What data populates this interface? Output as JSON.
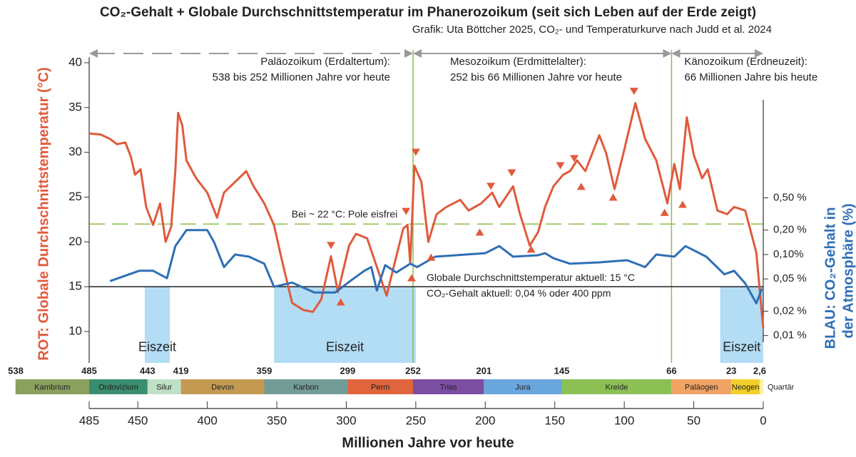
{
  "chart_data": {
    "type": "line",
    "title": "CO₂-Gehalt + Globale Durchschnittstemperatur im Phanerozoikum (seit sich Leben auf der Erde  zeigt)",
    "subtitle": "Grafik: Uta Böttcher 2025, CO₂- und Temperaturkurve nach Judd et al. 2024",
    "x_label": "Millionen Jahre vor heute",
    "y_label": "ROT: Globale Durchschnittstemperatur (°C)",
    "y2_label": [
      "BLAU: CO₂-Gehalt in",
      "der Atmosphäre (%)"
    ],
    "xlim": [
      485,
      0
    ],
    "xticks": [
      485,
      450,
      400,
      350,
      300,
      250,
      200,
      150,
      100,
      50,
      0
    ],
    "ylim": [
      6.5,
      41
    ],
    "yticks": [
      10,
      15,
      20,
      25,
      30,
      35,
      40
    ],
    "y2lim": [
      0.0046,
      30
    ],
    "y2scale": "log",
    "y2ticks": [
      {
        "value": 0.01,
        "label": "0,01 %"
      },
      {
        "value": 0.02,
        "label": "0,02 %"
      },
      {
        "value": 0.05,
        "label": "0,05 %"
      },
      {
        "value": 0.1,
        "label": "0,10%"
      },
      {
        "value": 0.2,
        "label": "0,20 %"
      },
      {
        "value": 0.5,
        "label": "0,50 %"
      }
    ],
    "series": [
      {
        "color": "#e05a3c",
        "x": [
          485,
          477,
          470,
          465,
          459,
          455,
          452,
          448,
          444,
          439,
          434,
          430,
          426,
          423,
          421,
          418,
          415,
          408,
          400,
          393,
          388,
          380,
          372,
          367,
          359,
          352,
          347,
          339,
          331,
          324,
          318,
          311,
          306,
          298,
          293,
          285,
          278,
          271,
          264,
          259,
          256,
          254,
          251,
          246,
          241,
          235,
          228,
          218,
          212,
          203,
          195,
          190,
          180,
          175,
          168,
          162,
          157,
          151,
          144,
          139,
          134,
          128,
          118,
          113,
          107,
          100,
          92,
          85,
          77,
          69,
          64,
          60,
          55,
          50,
          44,
          40,
          33,
          26,
          21,
          13,
          5,
          1.5,
          0
        ],
        "values": [
          32.1,
          32,
          31.5,
          30.9,
          31.1,
          29.5,
          27.5,
          28.1,
          23.9,
          21.9,
          24.3,
          20,
          21.7,
          27.9,
          34.4,
          33,
          29.1,
          27.1,
          25.5,
          22.7,
          25.5,
          26.7,
          27.9,
          26.3,
          24.3,
          21.9,
          18.4,
          13.2,
          12.4,
          12.2,
          13.6,
          18.4,
          14.4,
          19.6,
          20.9,
          20.4,
          17.2,
          14,
          18.4,
          21.5,
          21.9,
          17.6,
          28.5,
          26.7,
          20,
          23.1,
          23.9,
          24.7,
          23.5,
          24.3,
          25.5,
          23.9,
          26.2,
          23.1,
          19.6,
          21.1,
          23.9,
          26.2,
          27.5,
          27.9,
          29.1,
          27.9,
          31.9,
          29.9,
          25.9,
          30.3,
          35.5,
          31.5,
          29.1,
          24.3,
          28.7,
          25.9,
          33.9,
          29.7,
          27.1,
          28.1,
          23.5,
          23.1,
          23.9,
          23.5,
          18.8,
          12.8,
          10.4
        ]
      },
      {
        "color": "#2f6fb5",
        "axis": "y2",
        "x": [
          470,
          449,
          439,
          429,
          423,
          415,
          400,
          395,
          388,
          380,
          370,
          359,
          352,
          339,
          323,
          308,
          298,
          287,
          282,
          278,
          272,
          264,
          254,
          249,
          236,
          200,
          190,
          180,
          162,
          157,
          151,
          139,
          118,
          98,
          85,
          77,
          64,
          56,
          41,
          28,
          21,
          13,
          5,
          1
        ],
        "values": [
          0.047,
          0.063,
          0.063,
          0.051,
          0.127,
          0.2,
          0.2,
          0.14,
          0.07,
          0.1,
          0.094,
          0.077,
          0.04,
          0.045,
          0.034,
          0.034,
          0.046,
          0.063,
          0.07,
          0.036,
          0.074,
          0.06,
          0.077,
          0.07,
          0.094,
          0.104,
          0.127,
          0.094,
          0.098,
          0.104,
          0.09,
          0.077,
          0.08,
          0.085,
          0.07,
          0.1,
          0.094,
          0.127,
          0.094,
          0.057,
          0.063,
          0.044,
          0.025,
          0.038
        ]
      }
    ],
    "warm_markers": {
      "color": "#e05a3c",
      "x": [
        311,
        257,
        250,
        196,
        181,
        146,
        136,
        93
      ],
      "values": [
        19.6,
        23.4,
        30,
        26.2,
        27.7,
        28.5,
        29.3,
        36.8
      ]
    },
    "cold_markers": {
      "color": "#e05a3c",
      "x": [
        304,
        253,
        239,
        204,
        167,
        131,
        108,
        71,
        58
      ],
      "values": [
        13.3,
        16,
        18.3,
        21.1,
        19.2,
        26.2,
        25,
        23.3,
        24.2
      ]
    },
    "reference_lines": [
      {
        "value": 22,
        "color": "#8cc04a",
        "style": "dashed",
        "labels": [
          "Bei ~ 22 °C: Pole eisfrei"
        ]
      },
      {
        "value": 15,
        "color": "#222222",
        "style": "solid",
        "labels": [
          "Globale Durchschnittstemperatur aktuell: 15 °C",
          "CO₂-Gehalt aktuell: 0,04 % oder 400 ppm"
        ]
      }
    ],
    "ice_ages": [
      {
        "label": "Eiszeit",
        "start": 445,
        "end": 427
      },
      {
        "label": "Eiszeit",
        "start": 352,
        "end": 250
      },
      {
        "label": "Eiszeit",
        "start": 31,
        "end": 0
      }
    ],
    "eras": [
      {
        "lines": [
          "Paläozoikum (Erdaltertum):",
          "538 bis 252 Millionen Jahre vor heute"
        ],
        "start": 485,
        "end": 252
      },
      {
        "lines": [
          "Mesozoikum (Erdmittelalter):",
          "252 bis 66 Millionen Jahre vor heute"
        ],
        "start": 252,
        "end": 66
      },
      {
        "lines": [
          "Känozoikum (Erdneuzeit):",
          "66 Millionen Jahre bis heute"
        ],
        "start": 66,
        "end": 0
      }
    ],
    "periods": [
      "Kambrium",
      "Ordovizium",
      "Silur",
      "Devon",
      "Karbon",
      "Perm",
      "Trias",
      "Jura",
      "Kreide",
      "Paläogen",
      "Neogen",
      "Quartär"
    ],
    "period_boundaries": [
      538,
      485,
      443,
      419,
      359,
      299,
      252,
      201,
      145,
      66,
      23,
      {
        "value": 2.6,
        "label": "2,6"
      }
    ],
    "period_colors": [
      "#8aa05e",
      "#3a8d6e",
      "#bfe0c4",
      "#c49a52",
      "#739c97",
      "#e0643c",
      "#7a4ea0",
      "#6aa6de",
      "#8cc055",
      "#f0a464",
      "#f3cf2a",
      "#f8f0a8"
    ]
  }
}
